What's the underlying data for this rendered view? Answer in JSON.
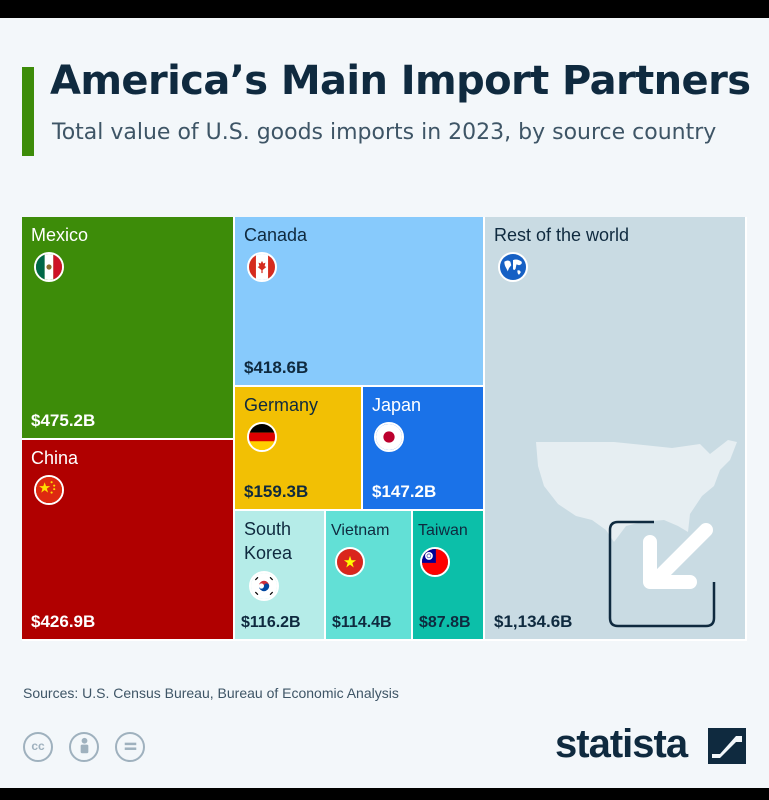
{
  "header": {
    "title": "America’s Main Import Partners",
    "subtitle": "Total value of U.S. goods imports in 2023, by source country"
  },
  "chart_data": {
    "type": "treemap",
    "title": "America’s Main Import Partners",
    "subtitle": "Total value of U.S. goods imports in 2023, by source country",
    "unit": "billion USD",
    "items": [
      {
        "name": "Mexico",
        "value": 475.2,
        "label": "$475.2B",
        "color": "#3d8c09",
        "text_color": "#ffffff",
        "flag": "mexico-flag-icon"
      },
      {
        "name": "China",
        "value": 426.9,
        "label": "$426.9B",
        "color": "#b00000",
        "text_color": "#ffffff",
        "flag": "china-flag-icon"
      },
      {
        "name": "Canada",
        "value": 418.6,
        "label": "$418.6B",
        "color": "#87cafc",
        "text_color": "#0f2a3f",
        "flag": "canada-flag-icon"
      },
      {
        "name": "Germany",
        "value": 159.3,
        "label": "$159.3B",
        "color": "#f2c004",
        "text_color": "#0f2a3f",
        "flag": "germany-flag-icon"
      },
      {
        "name": "Japan",
        "value": 147.2,
        "label": "$147.2B",
        "color": "#1a72e8",
        "text_color": "#ffffff",
        "flag": "japan-flag-icon"
      },
      {
        "name": "South Korea",
        "value": 116.2,
        "label": "$116.2B",
        "color": "#b5ece8",
        "text_color": "#0f2a3f",
        "flag": "south-korea-flag-icon"
      },
      {
        "name": "Vietnam",
        "value": 114.4,
        "label": "$114.4B",
        "color": "#62e0d6",
        "text_color": "#0f2a3f",
        "flag": "vietnam-flag-icon"
      },
      {
        "name": "Taiwan",
        "value": 87.8,
        "label": "$87.8B",
        "color": "#0cbfa9",
        "text_color": "#0f2a3f",
        "flag": "taiwan-flag-icon"
      },
      {
        "name": "Rest of the world",
        "value": 1134.6,
        "label": "$1,134.6B",
        "color": "#c9dbe3",
        "text_color": "#0f2a3f",
        "flag": "globe-icon"
      }
    ]
  },
  "footer": {
    "sources": "Sources: U.S. Census Bureau, Bureau of Economic Analysis",
    "license_icons": [
      "cc-icon",
      "attribution-icon",
      "no-derivatives-icon"
    ],
    "brand": "statista"
  }
}
